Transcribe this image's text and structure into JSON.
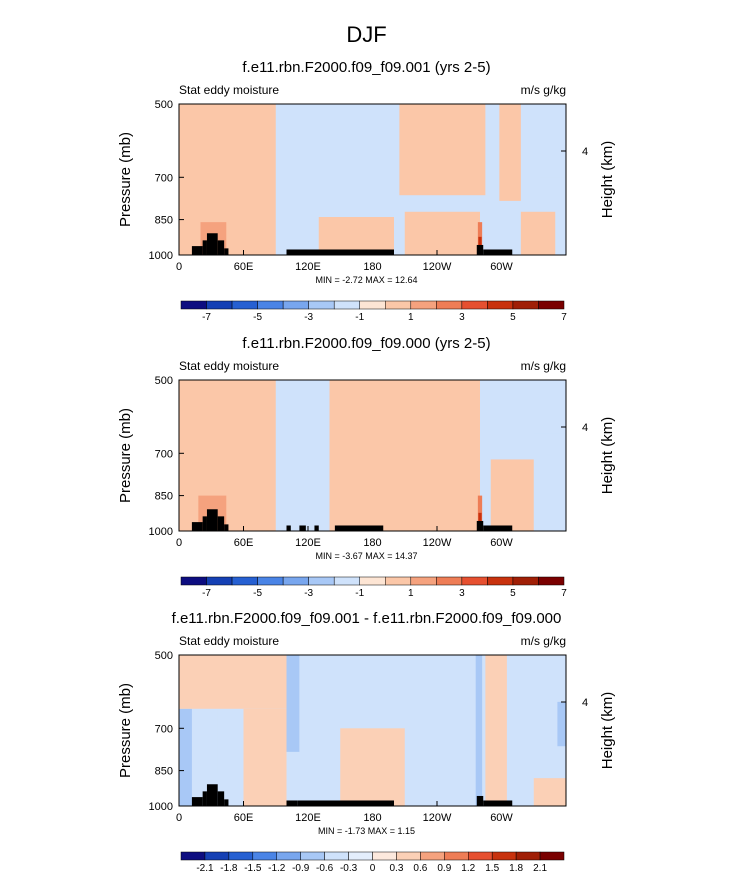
{
  "main_title": "DJF",
  "chart_data": [
    {
      "type": "heatmap",
      "title": "f.e11.rbn.F2000.f09_f09.001 (yrs 2-5)",
      "left_label": "Stat eddy moisture",
      "right_label": "m/s g/kg",
      "ylabel": "Pressure (mb)",
      "ylabel_right": "Height (km)",
      "y_ticks": [
        "500",
        "700",
        "850",
        "1000"
      ],
      "y_ticks_right": [
        "4"
      ],
      "x_ticks": [
        "0",
        "60E",
        "120E",
        "180",
        "120W",
        "60W"
      ],
      "stats": "MIN = -2.72   MAX = 12.64",
      "colorbar_labels": [
        "-7",
        "-5",
        "-3",
        "-1",
        "1",
        "3",
        "5",
        "7"
      ],
      "colorbar_colors": [
        "#0d0d80",
        "#1540b4",
        "#2660d2",
        "#4a84e6",
        "#78a6ee",
        "#a8c8f6",
        "#cfe2fb",
        "#fde5d4",
        "#fbc7a8",
        "#f5a27e",
        "#ee7d56",
        "#e65030",
        "#c8320e",
        "#a01f06",
        "#7a0000"
      ],
      "ylim": [
        1000,
        500
      ],
      "xlim": [
        0,
        360
      ],
      "field": {
        "background": "#cfe2fb",
        "positive_regions": [
          {
            "lon": [
              0,
              90
            ],
            "p": [
              500,
              1000
            ],
            "level": 1
          },
          {
            "lon": [
              130,
              200
            ],
            "p": [
              840,
              1000
            ],
            "level": 1
          },
          {
            "lon": [
              205,
              285
            ],
            "p": [
              500,
              760
            ],
            "level": 1
          },
          {
            "lon": [
              210,
              280
            ],
            "p": [
              820,
              1000
            ],
            "level": 1
          },
          {
            "lon": [
              298,
              318
            ],
            "p": [
              500,
              780
            ],
            "level": 1
          },
          {
            "lon": [
              318,
              350
            ],
            "p": [
              820,
              1000
            ],
            "level": 1
          },
          {
            "lon": [
              20,
              44
            ],
            "p": [
              860,
              1000
            ],
            "level": 2
          },
          {
            "lon": [
              278,
              282
            ],
            "p": [
              860,
              1000
            ],
            "level": 3
          },
          {
            "lon": [
              278.5,
              281.5
            ],
            "p": [
              920,
              1000
            ],
            "level": 5
          }
        ],
        "negative_regions": [
          {
            "lon": [
              60,
              70
            ],
            "p": [
              500,
              620
            ],
            "level": -1
          },
          {
            "lon": [
              335,
              360
            ],
            "p": [
              500,
              700
            ],
            "level": -1
          }
        ]
      },
      "topography": [
        {
          "lon": [
            12,
            22
          ],
          "p": 960
        },
        {
          "lon": [
            22,
            26
          ],
          "p": 935
        },
        {
          "lon": [
            26,
            36
          ],
          "p": 905
        },
        {
          "lon": [
            36,
            42
          ],
          "p": 935
        },
        {
          "lon": [
            42,
            46
          ],
          "p": 970
        },
        {
          "lon": [
            100,
            200
          ],
          "p": 975
        },
        {
          "lon": [
            277,
            283
          ],
          "p": 955
        },
        {
          "lon": [
            283,
            310
          ],
          "p": 975
        }
      ]
    },
    {
      "type": "heatmap",
      "title": "f.e11.rbn.F2000.f09_f09.000 (yrs 2-5)",
      "left_label": "Stat eddy moisture",
      "right_label": "m/s g/kg",
      "ylabel": "Pressure (mb)",
      "ylabel_right": "Height (km)",
      "y_ticks": [
        "500",
        "700",
        "850",
        "1000"
      ],
      "y_ticks_right": [
        "4"
      ],
      "x_ticks": [
        "0",
        "60E",
        "120E",
        "180",
        "120W",
        "60W"
      ],
      "stats": "MIN = -3.67   MAX = 14.37",
      "colorbar_labels": [
        "-7",
        "-5",
        "-3",
        "-1",
        "1",
        "3",
        "5",
        "7"
      ],
      "colorbar_colors": [
        "#0d0d80",
        "#1540b4",
        "#2660d2",
        "#4a84e6",
        "#78a6ee",
        "#a8c8f6",
        "#cfe2fb",
        "#fde5d4",
        "#fbc7a8",
        "#f5a27e",
        "#ee7d56",
        "#e65030",
        "#c8320e",
        "#a01f06",
        "#7a0000"
      ],
      "ylim": [
        1000,
        500
      ],
      "xlim": [
        0,
        360
      ],
      "field": {
        "background": "#cfe2fb",
        "positive_regions": [
          {
            "lon": [
              0,
              90
            ],
            "p": [
              500,
              1000
            ],
            "level": 1
          },
          {
            "lon": [
              140,
              200
            ],
            "p": [
              500,
              1000
            ],
            "level": 1
          },
          {
            "lon": [
              200,
              280
            ],
            "p": [
              500,
              1000
            ],
            "level": 1
          },
          {
            "lon": [
              290,
              330
            ],
            "p": [
              720,
              1000
            ],
            "level": 1
          },
          {
            "lon": [
              18,
              44
            ],
            "p": [
              850,
              1000
            ],
            "level": 2
          },
          {
            "lon": [
              278,
              282
            ],
            "p": [
              850,
              1000
            ],
            "level": 3
          },
          {
            "lon": [
              278.5,
              281.5
            ],
            "p": [
              920,
              1000
            ],
            "level": 5
          }
        ],
        "negative_regions": [
          {
            "lon": [
              282,
              360
            ],
            "p": [
              500,
              640
            ],
            "level": -1
          },
          {
            "lon": [
              330,
              360
            ],
            "p": [
              640,
              1000
            ],
            "level": -1
          },
          {
            "lon": [
              100,
              140
            ],
            "p": [
              500,
              1000
            ],
            "level": -1
          }
        ]
      },
      "topography": [
        {
          "lon": [
            12,
            22
          ],
          "p": 960
        },
        {
          "lon": [
            22,
            26
          ],
          "p": 935
        },
        {
          "lon": [
            26,
            36
          ],
          "p": 905
        },
        {
          "lon": [
            36,
            42
          ],
          "p": 935
        },
        {
          "lon": [
            42,
            46
          ],
          "p": 970
        },
        {
          "lon": [
            100,
            104
          ],
          "p": 975
        },
        {
          "lon": [
            112,
            118
          ],
          "p": 975
        },
        {
          "lon": [
            126,
            130
          ],
          "p": 975
        },
        {
          "lon": [
            145,
            190
          ],
          "p": 975
        },
        {
          "lon": [
            277,
            283
          ],
          "p": 955
        },
        {
          "lon": [
            283,
            310
          ],
          "p": 975
        }
      ]
    },
    {
      "type": "heatmap",
      "title": "f.e11.rbn.F2000.f09_f09.001 - f.e11.rbn.F2000.f09_f09.000",
      "left_label": "Stat eddy moisture",
      "right_label": "m/s g/kg",
      "ylabel": "Pressure (mb)",
      "ylabel_right": "Height (km)",
      "y_ticks": [
        "500",
        "700",
        "850",
        "1000"
      ],
      "y_ticks_right": [
        "4"
      ],
      "x_ticks": [
        "0",
        "60E",
        "120E",
        "180",
        "120W",
        "60W"
      ],
      "stats": "MIN = -1.73   MAX =  1.15",
      "colorbar_labels": [
        "-2.1",
        "-1.8",
        "-1.5",
        "-1.2",
        "-0.9",
        "-0.6",
        "-0.3",
        "0",
        "0.3",
        "0.6",
        "0.9",
        "1.2",
        "1.5",
        "1.8",
        "2.1"
      ],
      "colorbar_colors": [
        "#0d0d80",
        "#1540b4",
        "#2660d2",
        "#4a84e6",
        "#78a6ee",
        "#a8c8f6",
        "#cfe2fb",
        "#e4eefc",
        "#fde9dd",
        "#fbd0b6",
        "#f5a27e",
        "#ee7d56",
        "#e65030",
        "#c8320e",
        "#a01f06",
        "#7a0000"
      ],
      "ylim": [
        1000,
        500
      ],
      "xlim": [
        0,
        360
      ],
      "field": {
        "background": "#cfe2fb",
        "positive_regions": [
          {
            "lon": [
              0,
              100
            ],
            "p": [
              500,
              640
            ],
            "level": 1
          },
          {
            "lon": [
              60,
              100
            ],
            "p": [
              640,
              1000
            ],
            "level": 1
          },
          {
            "lon": [
              150,
              210
            ],
            "p": [
              700,
              1000
            ],
            "level": 1
          },
          {
            "lon": [
              285,
              305
            ],
            "p": [
              500,
              1000
            ],
            "level": 1
          },
          {
            "lon": [
              330,
              360
            ],
            "p": [
              880,
              1000
            ],
            "level": 1
          }
        ],
        "negative_regions": [
          {
            "lon": [
              0,
              12
            ],
            "p": [
              640,
              1000
            ],
            "level": -3
          },
          {
            "lon": [
              18,
              36
            ],
            "p": [
              620,
              860
            ],
            "level": -2
          },
          {
            "lon": [
              100,
              112
            ],
            "p": [
              500,
              780
            ],
            "level": -3
          },
          {
            "lon": [
              250,
              262
            ],
            "p": [
              680,
              760
            ],
            "level": -2
          },
          {
            "lon": [
              276,
              282
            ],
            "p": [
              500,
              1000
            ],
            "level": -3
          },
          {
            "lon": [
              352,
              360
            ],
            "p": [
              620,
              760
            ],
            "level": -3
          }
        ]
      },
      "topography": [
        {
          "lon": [
            12,
            22
          ],
          "p": 960
        },
        {
          "lon": [
            22,
            26
          ],
          "p": 935
        },
        {
          "lon": [
            26,
            36
          ],
          "p": 905
        },
        {
          "lon": [
            36,
            42
          ],
          "p": 935
        },
        {
          "lon": [
            42,
            46
          ],
          "p": 970
        },
        {
          "lon": [
            100,
            110
          ],
          "p": 975
        },
        {
          "lon": [
            110,
            200
          ],
          "p": 975
        },
        {
          "lon": [
            277,
            283
          ],
          "p": 955
        },
        {
          "lon": [
            283,
            310
          ],
          "p": 975
        }
      ]
    }
  ]
}
